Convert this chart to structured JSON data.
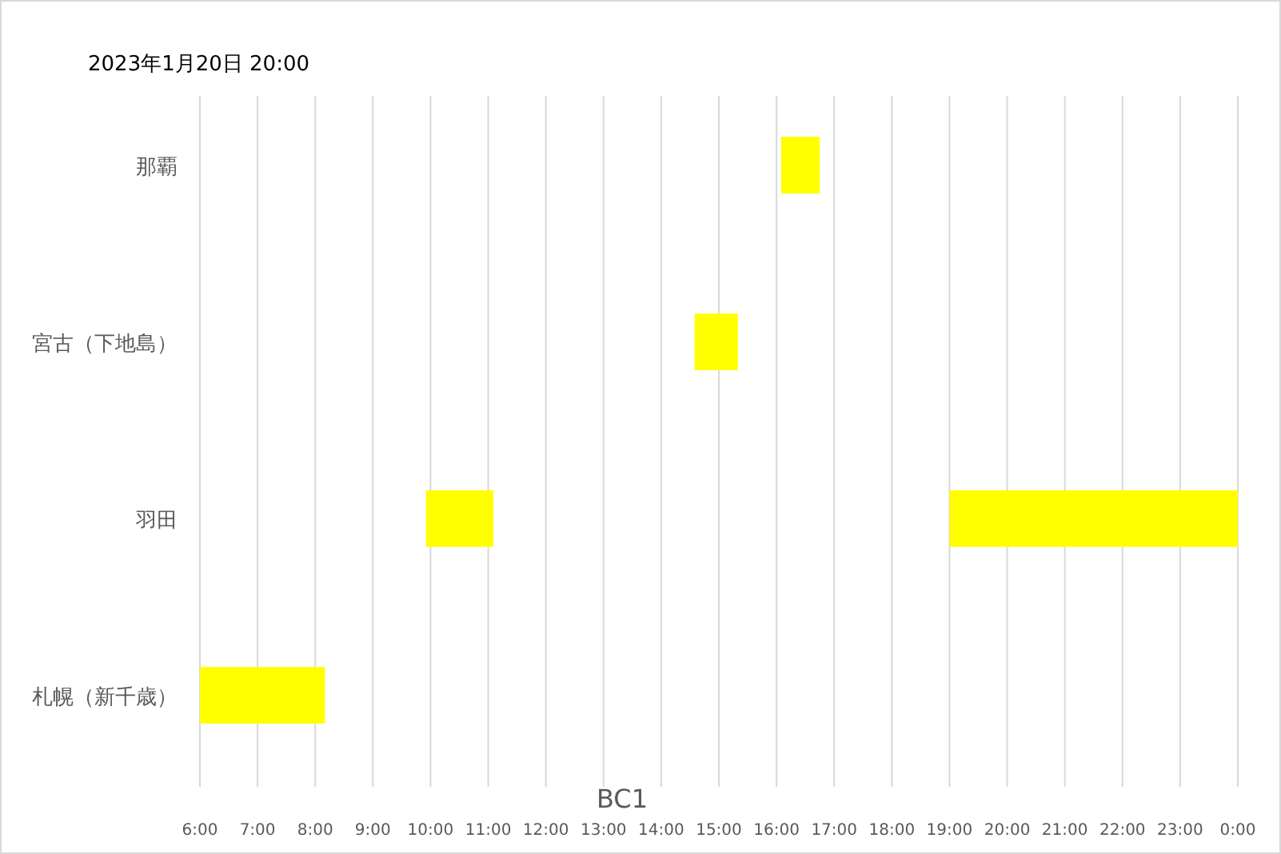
{
  "chart_data": {
    "type": "bar",
    "orientation": "horizontal",
    "title": "2023年1月20日 20:00",
    "xlabel": "BC1",
    "categories": [
      "那覇",
      "宮古（下地島）",
      "羽田",
      "札幌（新千歳）"
    ],
    "series": [
      {
        "color": "#ffff00",
        "base": [
          16.08,
          14.58,
          9.92,
          6
        ],
        "values": [
          0.67,
          0.75,
          1.17,
          2.17
        ]
      },
      {
        "color": "#ffff00",
        "base": [
          null,
          null,
          19,
          null
        ],
        "values": [
          null,
          null,
          5,
          null
        ]
      }
    ],
    "xlim": [
      6,
      24
    ],
    "xticks": [
      {
        "value": 6,
        "label": "6:00"
      },
      {
        "value": 7,
        "label": "7:00"
      },
      {
        "value": 8,
        "label": "8:00"
      },
      {
        "value": 9,
        "label": "9:00"
      },
      {
        "value": 10,
        "label": "10:00"
      },
      {
        "value": 11,
        "label": "11:00"
      },
      {
        "value": 12,
        "label": "12:00"
      },
      {
        "value": 13,
        "label": "13:00"
      },
      {
        "value": 14,
        "label": "14:00"
      },
      {
        "value": 15,
        "label": "15:00"
      },
      {
        "value": 16,
        "label": "16:00"
      },
      {
        "value": 17,
        "label": "17:00"
      },
      {
        "value": 18,
        "label": "18:00"
      },
      {
        "value": 19,
        "label": "19:00"
      },
      {
        "value": 20,
        "label": "20:00"
      },
      {
        "value": 21,
        "label": "21:00"
      },
      {
        "value": 22,
        "label": "22:00"
      },
      {
        "value": 23,
        "label": "23:00"
      },
      {
        "value": 24,
        "label": "0:00"
      }
    ],
    "grid": "x"
  }
}
